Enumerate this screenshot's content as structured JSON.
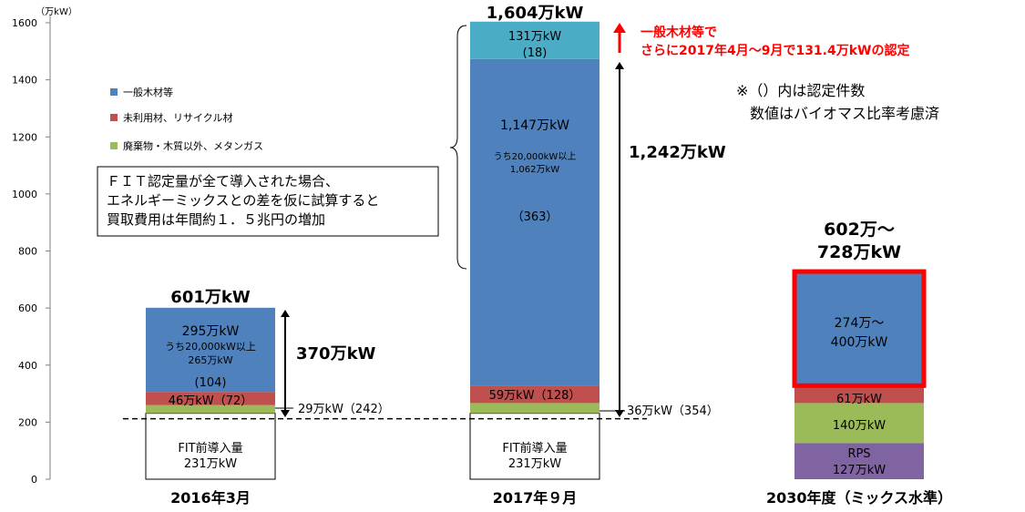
{
  "chart_data": {
    "type": "bar",
    "stacked": true,
    "unit_label": "（万kW）",
    "ylim": [
      0,
      1600
    ],
    "yticks": [
      0,
      200,
      400,
      600,
      800,
      1000,
      1200,
      1400,
      1600
    ],
    "grid": false,
    "legend_position": "top-left",
    "categories": [
      "2016年3月",
      "2017年９月",
      "2030年度（ミックス水準）"
    ],
    "segments": [
      {
        "category": 0,
        "base": 0,
        "value": 231,
        "series": "FIT前導入量",
        "color": "#ffffff",
        "lines": [
          "FIT前導入量",
          "231万kW"
        ]
      },
      {
        "category": 0,
        "base": 231,
        "value": 29,
        "series": "廃棄物・木質以外、メタンガス",
        "color": "#9bbb59",
        "lines": []
      },
      {
        "category": 0,
        "base": 260,
        "value": 46,
        "series": "未利用材、リサイクル材",
        "color": "#c0504d",
        "lines": [
          "46万kW（72）"
        ]
      },
      {
        "category": 0,
        "base": 306,
        "value": 295,
        "series": "一般木材等",
        "color": "#4f81bd",
        "lines": [
          "295万kW",
          "うち20,000kW以上",
          "265万kW",
          "(104)"
        ]
      },
      {
        "category": 1,
        "base": 0,
        "value": 231,
        "series": "FIT前導入量",
        "color": "#ffffff",
        "lines": [
          "FIT前導入量",
          "231万kW"
        ]
      },
      {
        "category": 1,
        "base": 231,
        "value": 36,
        "series": "廃棄物・木質以外、メタンガス",
        "color": "#9bbb59",
        "lines": []
      },
      {
        "category": 1,
        "base": 267,
        "value": 59,
        "series": "未利用材、リサイクル材",
        "color": "#c0504d",
        "lines": [
          "59万kW（128）"
        ]
      },
      {
        "category": 1,
        "base": 326,
        "value": 1147,
        "series": "一般木材等",
        "color": "#4f81bd",
        "lines": [
          "1,147万kW",
          "うち20,000kW以上",
          "1,062万kW",
          "（363）"
        ]
      },
      {
        "category": 1,
        "base": 1473,
        "value": 131,
        "series": "一般木材等（2017年4月～9月）",
        "color": "#4bacc6",
        "lines": [
          "131万kW",
          "(18)"
        ]
      },
      {
        "category": 2,
        "base": 0,
        "value": 127,
        "series": "RPS",
        "color": "#8064a2",
        "lines": [
          "RPS",
          "127万kW"
        ]
      },
      {
        "category": 2,
        "base": 127,
        "value": 140,
        "series": "廃棄物・木質以外、メタンガス",
        "color": "#9bbb59",
        "lines": [
          "140万kW"
        ]
      },
      {
        "category": 2,
        "base": 267,
        "value": 61,
        "series": "未利用材、リサイクル材",
        "color": "#c0504d",
        "lines": [
          "61万kW"
        ]
      },
      {
        "category": 2,
        "base": 328,
        "value": 400,
        "series": "一般木材等",
        "color": "#4f81bd",
        "lines": [
          "274万～",
          "400万kW"
        ]
      }
    ],
    "totals": [
      "601万kW",
      "1,604万kW",
      "602万～\n728万kW"
    ],
    "legend": [
      {
        "label": "一般木材等",
        "color": "#4f81bd"
      },
      {
        "label": "未利用材、リサイクル材",
        "color": "#c0504d"
      },
      {
        "label": "廃棄物・木質以外、メタンガス",
        "color": "#9bbb59"
      }
    ],
    "annotations": {
      "diff_2016": "370万kW",
      "small_2016": "29万kW（242）",
      "diff_2017": "1,242万kW",
      "small_2017": "36万kW（354）",
      "fit_baseline": 212,
      "note_box": [
        "ＦＩＴ認定量が全て導入された場合、",
        "エネルギーミックスとの差を仮に試算すると",
        "買取費用は年間約１．５兆円の増加"
      ],
      "red_note": [
        "一般木材等で",
        "さらに2017年4月～9月で131.4万kWの認定"
      ],
      "remark": [
        "※（）内は認定件数",
        "数値はバイオマス比率考慮済"
      ]
    },
    "colors": {
      "axis": "#7f7f7f",
      "red": "#ff0000",
      "text": "#000000"
    }
  }
}
